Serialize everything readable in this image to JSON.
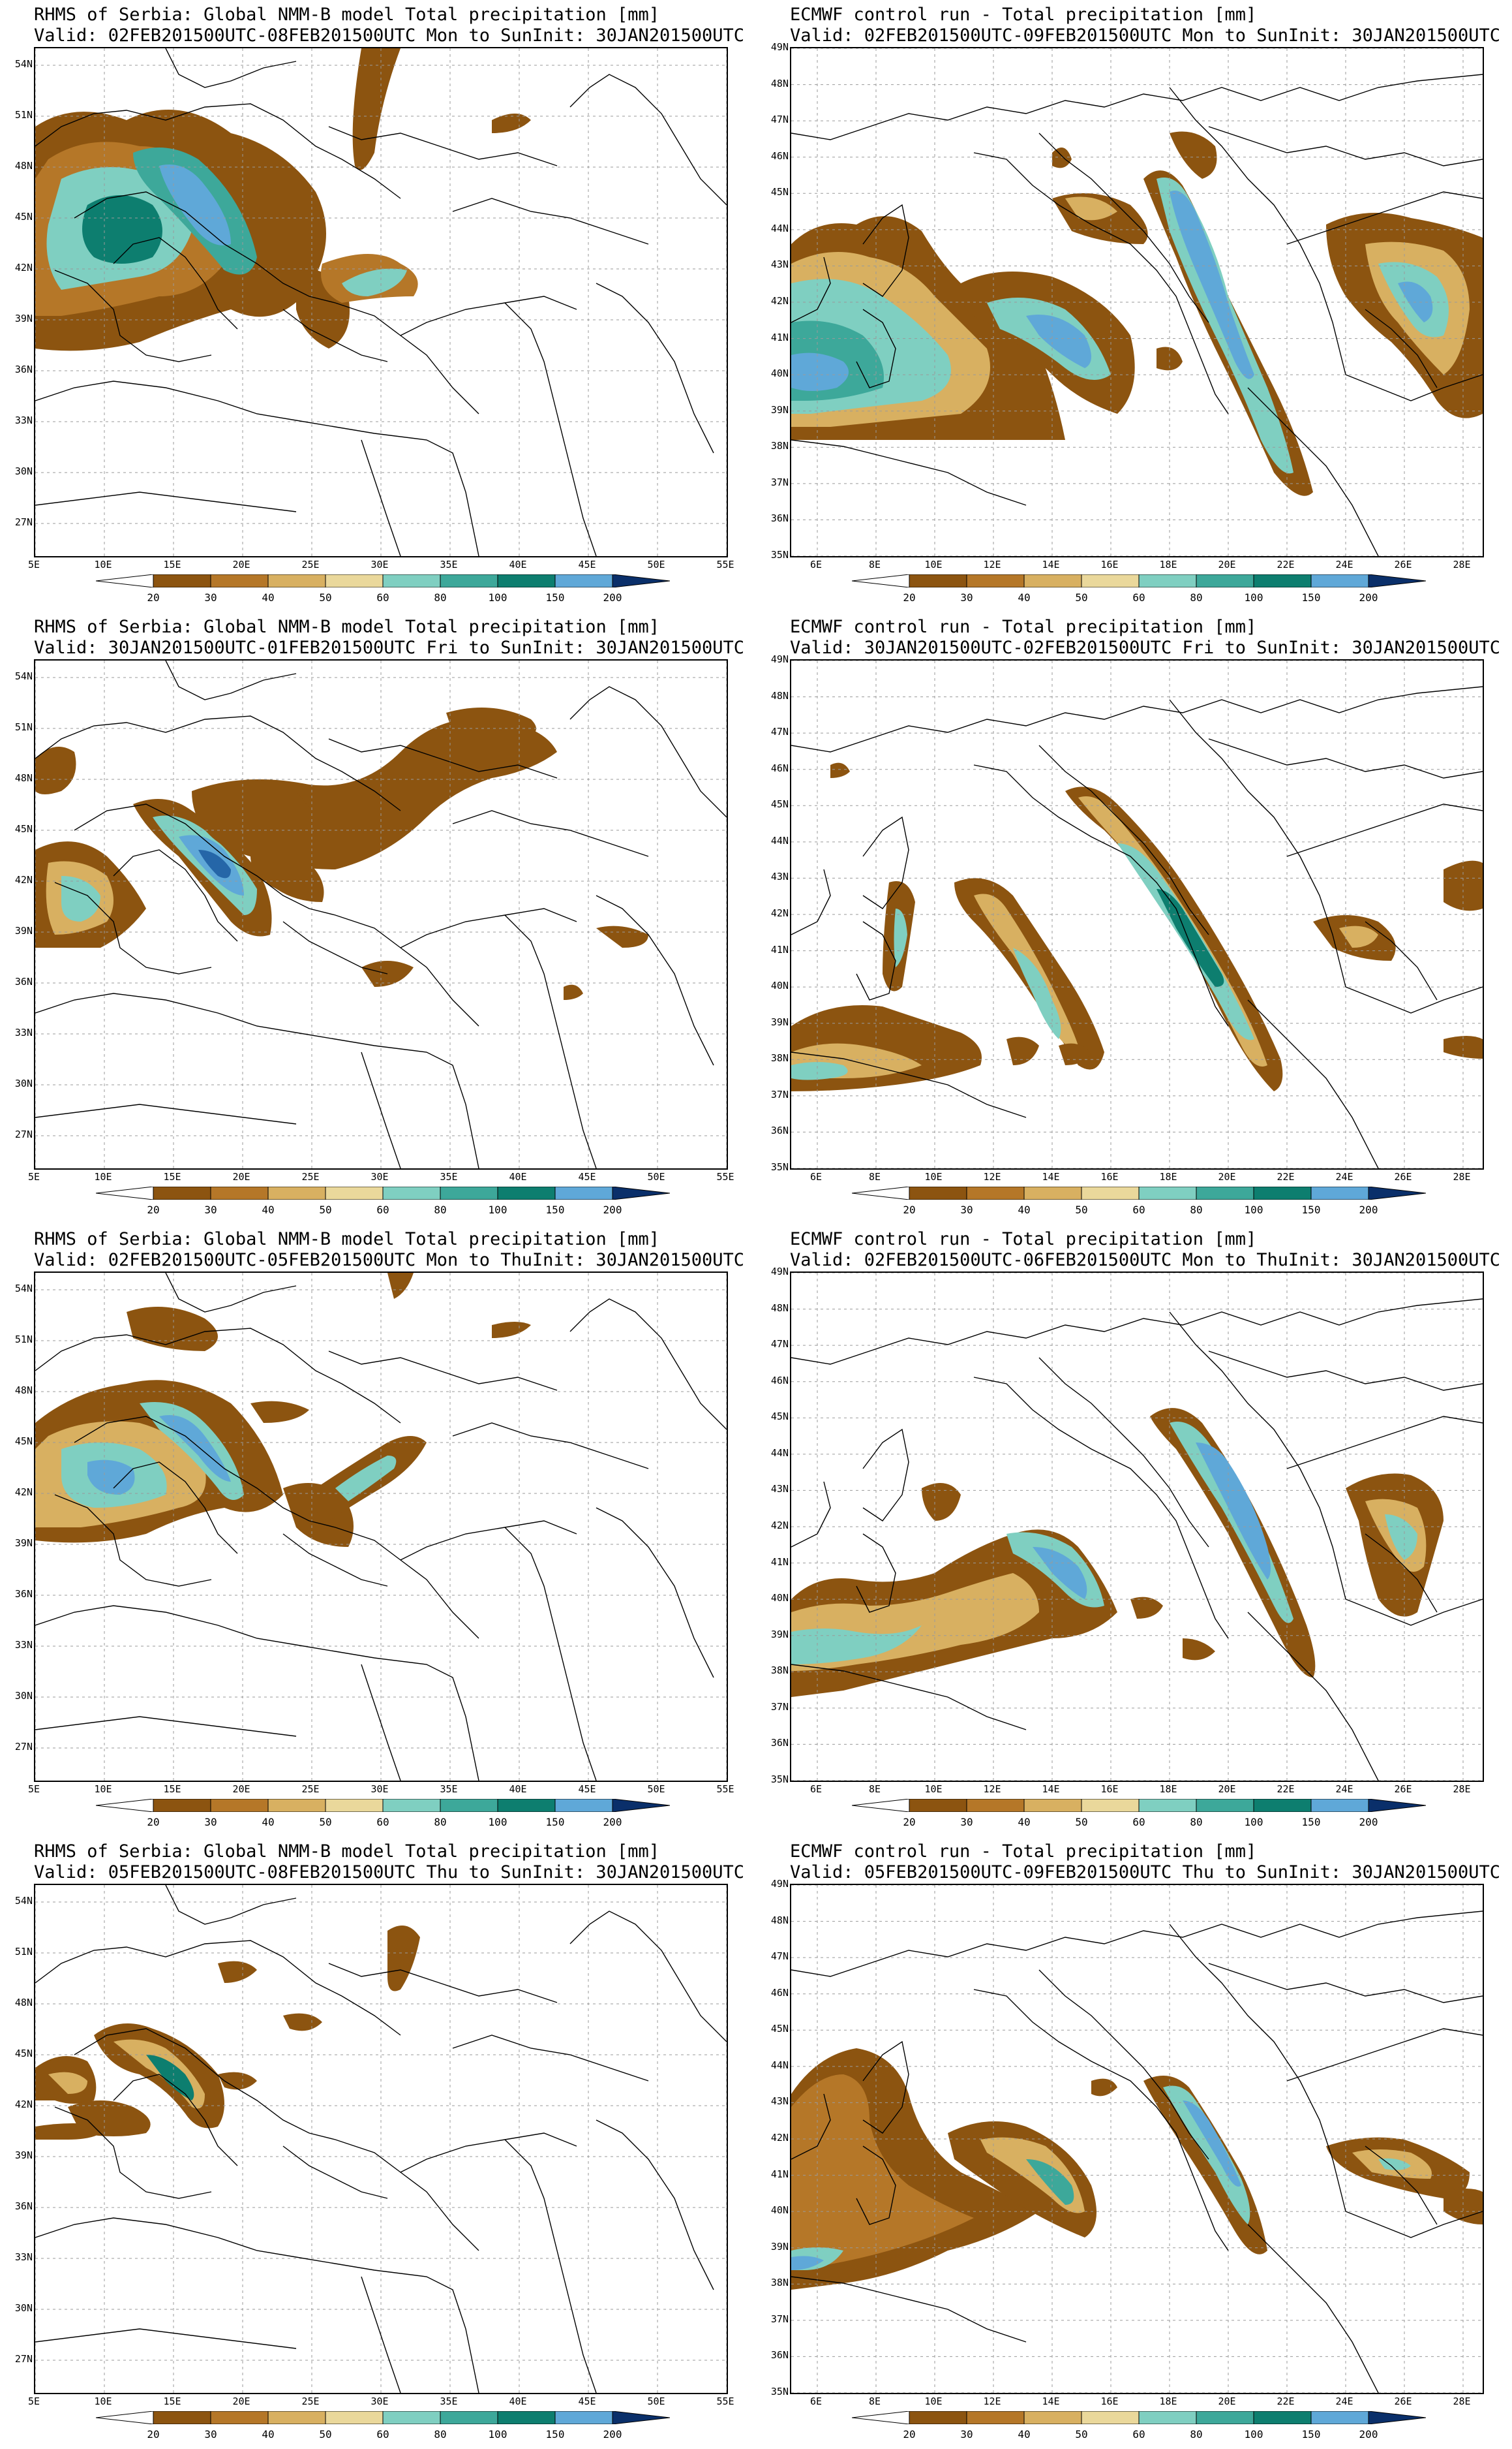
{
  "units_colors": [
    "#ffffff",
    "#8c5410",
    "#b57728",
    "#d8b061",
    "#ead89b",
    "#7fcfc1",
    "#3da89a",
    "#0d7e6f",
    "#5fa8d8",
    "#2566a8",
    "#0a2f6a"
  ],
  "colorbar_levels": [
    "20",
    "30",
    "40",
    "50",
    "60",
    "80",
    "100",
    "150",
    "200"
  ],
  "panels": [
    {
      "name": "nmm-week",
      "model": "nmm",
      "title": "RHMS of Serbia: Global NMM-B model Total precipitation [mm]",
      "valid": "Valid: 02FEB201500UTC-08FEB201500UTC Mon to Sun",
      "init": "Init: 30JAN201500UTC"
    },
    {
      "name": "ecmwf-week",
      "model": "ecmwf",
      "title": "ECMWF control run - Total precipitation [mm]",
      "valid": "Valid: 02FEB201500UTC-09FEB201500UTC Mon to Sun",
      "init": "Init: 30JAN201500UTC"
    },
    {
      "name": "nmm-fri-sun",
      "model": "nmm",
      "title": "RHMS of Serbia: Global NMM-B model Total precipitation [mm]",
      "valid": "Valid: 30JAN201500UTC-01FEB201500UTC Fri to Sun",
      "init": "Init: 30JAN201500UTC"
    },
    {
      "name": "ecmwf-fri-sun",
      "model": "ecmwf",
      "title": "ECMWF control run - Total precipitation [mm]",
      "valid": "Valid: 30JAN201500UTC-02FEB201500UTC Fri to Sun",
      "init": "Init: 30JAN201500UTC"
    },
    {
      "name": "nmm-mon-thu",
      "model": "nmm",
      "title": "RHMS of Serbia: Global NMM-B model Total precipitation [mm]",
      "valid": "Valid: 02FEB201500UTC-05FEB201500UTC Mon to Thu",
      "init": "Init: 30JAN201500UTC"
    },
    {
      "name": "ecmwf-mon-thu",
      "model": "ecmwf",
      "title": "ECMWF control run - Total precipitation [mm]",
      "valid": "Valid: 02FEB201500UTC-06FEB201500UTC Mon to Thu",
      "init": "Init: 30JAN201500UTC"
    },
    {
      "name": "nmm-thu-sun",
      "model": "nmm",
      "title": "RHMS of Serbia: Global NMM-B model Total precipitation [mm]",
      "valid": "Valid: 05FEB201500UTC-08FEB201500UTC Thu to Sun",
      "init": "Init: 30JAN201500UTC"
    },
    {
      "name": "ecmwf-thu-sun",
      "model": "ecmwf",
      "title": "ECMWF control run - Total precipitation [mm]",
      "valid": "Valid: 05FEB201500UTC-09FEB201500UTC Thu to Sun",
      "init": "Init: 30JAN201500UTC"
    }
  ],
  "axes": {
    "nmm": {
      "lat_labels": [
        "54N",
        "51N",
        "48N",
        "45N",
        "42N",
        "39N",
        "36N",
        "33N",
        "30N",
        "27N"
      ],
      "lon_labels": [
        "5E",
        "10E",
        "15E",
        "20E",
        "25E",
        "30E",
        "35E",
        "40E",
        "45E",
        "50E",
        "55E"
      ]
    },
    "ecmwf": {
      "lat_labels": [
        "49N",
        "48N",
        "47N",
        "46N",
        "45N",
        "44N",
        "43N",
        "42N",
        "41N",
        "40N",
        "39N",
        "38N",
        "37N",
        "36N",
        "35N"
      ],
      "lon_labels": [
        "6E",
        "8E",
        "10E",
        "12E",
        "14E",
        "16E",
        "18E",
        "20E",
        "22E",
        "24E",
        "26E",
        "28E"
      ]
    }
  }
}
